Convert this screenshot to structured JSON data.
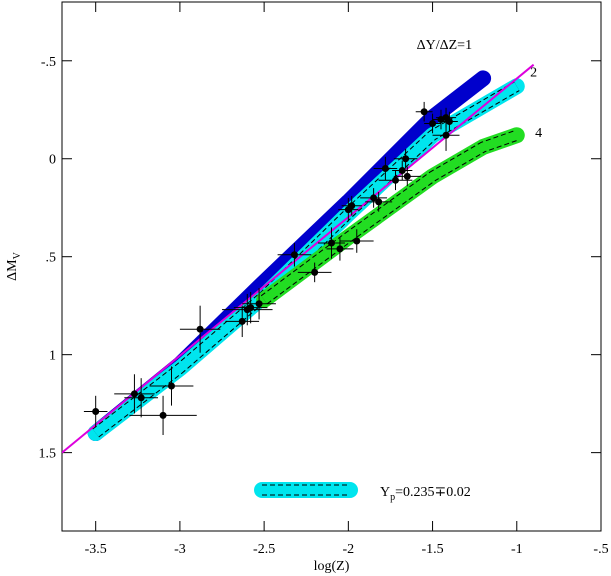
{
  "chart_data": {
    "type": "scatter",
    "xlabel": "log(Z)",
    "ylabel": {
      "main": "ΔM",
      "sub": "V"
    },
    "xlim": [
      -3.7,
      -0.5
    ],
    "ylim": [
      -0.8,
      1.9
    ],
    "y_inverted": true,
    "xticks": [
      -3.5,
      -3,
      -2.5,
      -2,
      -1.5,
      -1,
      {
        "value": -0.5,
        "label": "-.5"
      }
    ],
    "yticks": [
      {
        "value": -0.5,
        "label": "-.5"
      },
      0,
      {
        "value": 0.5,
        "label": ".5"
      },
      1,
      1.5
    ],
    "point_color": "#000000",
    "x": [
      -3.5,
      -3.27,
      -3.23,
      -3.1,
      -3.05,
      -2.88,
      -2.63,
      -2.6,
      -2.58,
      -2.53,
      -2.32,
      -2.2,
      -2.1,
      -2.05,
      -2.0,
      -1.98,
      -1.95,
      -1.85,
      -1.82,
      -1.78,
      -1.72,
      -1.68,
      -1.66,
      -1.65,
      -1.55,
      -1.5,
      -1.45,
      -1.42,
      -1.42,
      -1.4
    ],
    "y": [
      1.29,
      1.2,
      1.22,
      1.31,
      1.16,
      0.87,
      0.83,
      0.77,
      0.76,
      0.74,
      0.49,
      0.58,
      0.43,
      0.46,
      0.26,
      0.24,
      0.42,
      0.2,
      0.22,
      0.05,
      0.11,
      0.06,
      0.0,
      0.09,
      -0.24,
      -0.18,
      -0.2,
      -0.21,
      -0.12,
      -0.19
    ],
    "xerr": [
      0.07,
      0.12,
      0.1,
      0.2,
      0.13,
      0.12,
      0.1,
      0.15,
      0.1,
      0.1,
      0.1,
      0.1,
      0.08,
      0.08,
      0.06,
      0.06,
      0.1,
      0.08,
      0.08,
      0.07,
      0.1,
      0.06,
      0.07,
      0.08,
      0.05,
      0.05,
      0.05,
      0.06,
      0.08,
      0.05
    ],
    "yerr": [
      0.08,
      0.1,
      0.1,
      0.1,
      0.1,
      0.12,
      0.08,
      0.08,
      0.08,
      0.08,
      0.06,
      0.05,
      0.08,
      0.06,
      0.06,
      0.05,
      0.06,
      0.05,
      0.05,
      0.06,
      0.05,
      0.05,
      0.05,
      0.05,
      0.05,
      0.05,
      0.05,
      0.05,
      0.08,
      0.05
    ],
    "bands": [
      {
        "color": "#0000cc",
        "style": "solid",
        "x": [
          -3.5,
          -3.0,
          -2.5,
          -2.0,
          -1.5,
          -1.2
        ],
        "y": [
          1.4,
          1.05,
          0.63,
          0.22,
          -0.21,
          -0.41
        ]
      },
      {
        "color": "#00e5ee",
        "style": "dashed",
        "x": [
          -3.5,
          -3.0,
          -2.5,
          -2.0,
          -1.5,
          -1.0
        ],
        "y": [
          1.4,
          1.07,
          0.7,
          0.28,
          -0.12,
          -0.37
        ]
      },
      {
        "color": "#22dd22",
        "style": "dashed",
        "x": [
          -2.5,
          -2.0,
          -1.5,
          -1.2,
          -1.0
        ],
        "y": [
          0.72,
          0.4,
          0.09,
          -0.06,
          -0.12
        ]
      }
    ],
    "fit_line": {
      "color": "#dd00dd",
      "x": [
        -3.7,
        -0.9
      ],
      "y": [
        1.5,
        -0.48
      ]
    },
    "annotations": [
      {
        "text": "ΔY/ΔZ=1",
        "x": -1.43,
        "y": -0.56
      },
      {
        "text": "2",
        "x": -0.9,
        "y": -0.42
      },
      {
        "text": "4",
        "x": -0.87,
        "y": -0.11
      }
    ],
    "legend": {
      "main": "Y",
      "sub": "p",
      "rest": "=0.235∓0.02",
      "color": "#00e5ee"
    }
  }
}
